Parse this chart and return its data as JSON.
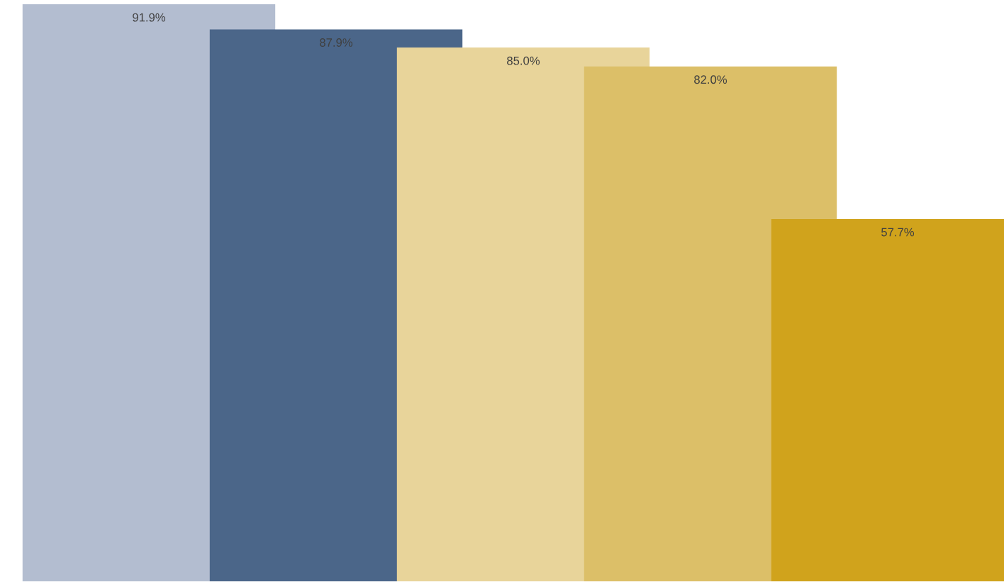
{
  "chart_data": {
    "type": "bar",
    "categories": [
      null,
      null,
      null,
      null,
      null
    ],
    "values": [
      91.9,
      87.9,
      85.0,
      82.0,
      57.7
    ],
    "value_labels": [
      "91.9%",
      "87.9%",
      "85.0%",
      "82.0%",
      "57.7%"
    ],
    "colors": [
      "#b3bdd0",
      "#4b6689",
      "#e8d49a",
      "#dcbf68",
      "#d0a31c"
    ],
    "grid": false,
    "legend": false
  }
}
